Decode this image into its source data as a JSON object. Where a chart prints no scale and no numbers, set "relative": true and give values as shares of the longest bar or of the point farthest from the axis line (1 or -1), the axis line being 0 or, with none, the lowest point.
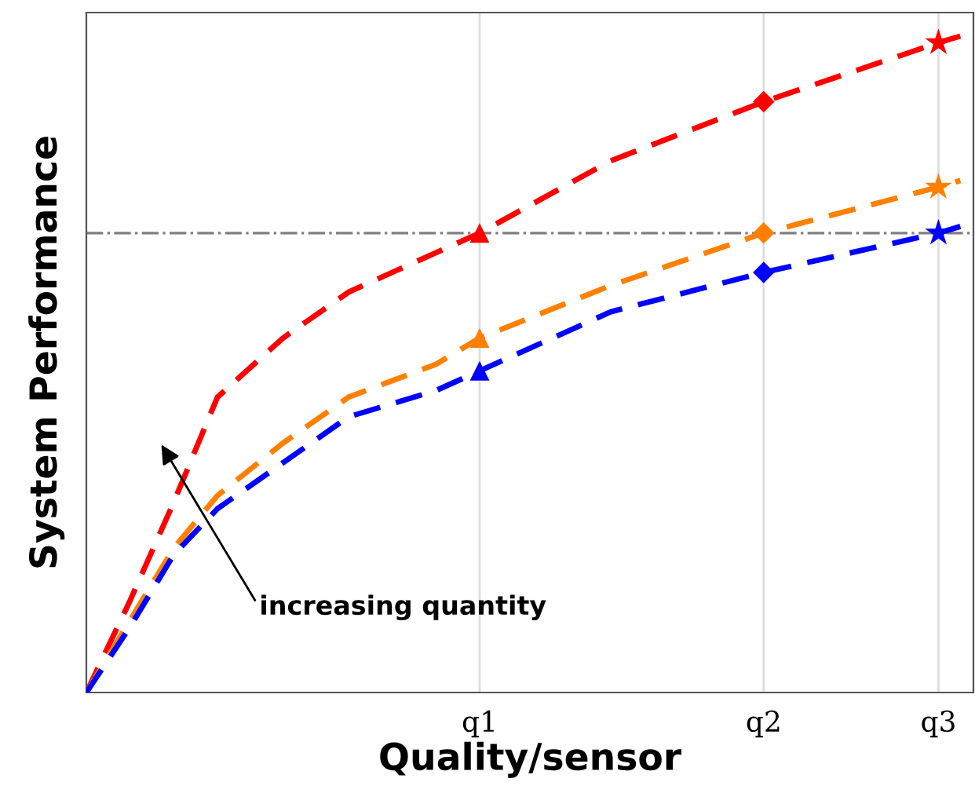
{
  "chart_data": {
    "type": "line",
    "xlabel": "Quality/sensor",
    "ylabel": "System Performance",
    "relative": true,
    "categories": [
      null,
      null,
      null,
      null,
      null,
      null,
      null,
      null,
      null,
      null,
      null,
      null,
      null,
      null,
      null,
      null,
      null,
      null,
      "q1",
      null,
      null,
      null,
      null,
      null,
      null,
      null,
      null,
      null,
      null,
      null,
      null,
      "q2",
      null,
      null,
      null,
      null,
      null,
      null,
      null,
      "q3",
      null
    ],
    "grid": "x",
    "line_style": "dashed",
    "marker": "none",
    "series": [
      {
        "color": "#ff0000",
        "values": [
          0,
          null,
          0.14,
          null,
          0.29,
          null,
          0.45,
          null,
          null,
          0.54,
          null,
          null,
          0.61,
          null,
          null,
          null,
          0.67,
          null,
          0.7,
          null,
          null,
          null,
          null,
          null,
          0.81,
          null,
          null,
          null,
          null,
          null,
          null,
          0.9,
          null,
          null,
          null,
          null,
          null,
          null,
          null,
          0.99,
          1.0
        ]
      },
      {
        "color": "#ff8000",
        "values": [
          0,
          null,
          0.11,
          null,
          0.22,
          null,
          0.3,
          null,
          null,
          0.38,
          null,
          null,
          0.45,
          null,
          null,
          null,
          0.5,
          null,
          0.54,
          null,
          null,
          null,
          null,
          null,
          0.62,
          null,
          null,
          null,
          null,
          null,
          null,
          0.7,
          null,
          null,
          null,
          null,
          null,
          null,
          null,
          0.77,
          0.78
        ]
      },
      {
        "color": "#0000ff",
        "values": [
          0,
          null,
          0.1,
          null,
          0.21,
          null,
          0.28,
          null,
          null,
          0.35,
          null,
          null,
          0.42,
          null,
          null,
          null,
          0.46,
          null,
          0.49,
          null,
          null,
          null,
          null,
          null,
          0.58,
          null,
          null,
          null,
          null,
          null,
          null,
          0.64,
          null,
          null,
          null,
          null,
          null,
          null,
          null,
          0.7,
          0.71
        ]
      },
      {
        "type": "scatter",
        "marker": "triangle",
        "color": "#ff0000",
        "values": [
          null,
          null,
          null,
          null,
          null,
          null,
          null,
          null,
          null,
          null,
          null,
          null,
          null,
          null,
          null,
          null,
          null,
          null,
          0.7,
          null,
          null,
          null,
          null,
          null,
          null,
          null,
          null,
          null,
          null,
          null,
          null,
          null,
          null,
          null,
          null,
          null,
          null,
          null,
          null,
          null,
          null
        ]
      },
      {
        "type": "scatter",
        "marker": "triangle",
        "color": "#ff8000",
        "values": [
          null,
          null,
          null,
          null,
          null,
          null,
          null,
          null,
          null,
          null,
          null,
          null,
          null,
          null,
          null,
          null,
          null,
          null,
          0.54,
          null,
          null,
          null,
          null,
          null,
          null,
          null,
          null,
          null,
          null,
          null,
          null,
          null,
          null,
          null,
          null,
          null,
          null,
          null,
          null,
          null,
          null
        ]
      },
      {
        "type": "scatter",
        "marker": "triangle",
        "color": "#0000ff",
        "values": [
          null,
          null,
          null,
          null,
          null,
          null,
          null,
          null,
          null,
          null,
          null,
          null,
          null,
          null,
          null,
          null,
          null,
          null,
          0.49,
          null,
          null,
          null,
          null,
          null,
          null,
          null,
          null,
          null,
          null,
          null,
          null,
          null,
          null,
          null,
          null,
          null,
          null,
          null,
          null,
          null,
          null
        ]
      },
      {
        "type": "scatter",
        "marker": "diamond",
        "color": "#ff0000",
        "values": [
          null,
          null,
          null,
          null,
          null,
          null,
          null,
          null,
          null,
          null,
          null,
          null,
          null,
          null,
          null,
          null,
          null,
          null,
          null,
          null,
          null,
          null,
          null,
          null,
          null,
          null,
          null,
          null,
          null,
          null,
          null,
          0.9,
          null,
          null,
          null,
          null,
          null,
          null,
          null,
          null,
          null
        ]
      },
      {
        "type": "scatter",
        "marker": "diamond",
        "color": "#ff8000",
        "values": [
          null,
          null,
          null,
          null,
          null,
          null,
          null,
          null,
          null,
          null,
          null,
          null,
          null,
          null,
          null,
          null,
          null,
          null,
          null,
          null,
          null,
          null,
          null,
          null,
          null,
          null,
          null,
          null,
          null,
          null,
          null,
          0.7,
          null,
          null,
          null,
          null,
          null,
          null,
          null,
          null,
          null
        ]
      },
      {
        "type": "scatter",
        "marker": "diamond",
        "color": "#0000ff",
        "values": [
          null,
          null,
          null,
          null,
          null,
          null,
          null,
          null,
          null,
          null,
          null,
          null,
          null,
          null,
          null,
          null,
          null,
          null,
          null,
          null,
          null,
          null,
          null,
          null,
          null,
          null,
          null,
          null,
          null,
          null,
          null,
          0.64,
          null,
          null,
          null,
          null,
          null,
          null,
          null,
          null,
          null
        ]
      },
      {
        "type": "scatter",
        "marker": "star",
        "color": "#ff0000",
        "values": [
          null,
          null,
          null,
          null,
          null,
          null,
          null,
          null,
          null,
          null,
          null,
          null,
          null,
          null,
          null,
          null,
          null,
          null,
          null,
          null,
          null,
          null,
          null,
          null,
          null,
          null,
          null,
          null,
          null,
          null,
          null,
          null,
          null,
          null,
          null,
          null,
          null,
          null,
          null,
          0.99,
          null
        ]
      },
      {
        "type": "scatter",
        "marker": "star",
        "color": "#ff8000",
        "values": [
          null,
          null,
          null,
          null,
          null,
          null,
          null,
          null,
          null,
          null,
          null,
          null,
          null,
          null,
          null,
          null,
          null,
          null,
          null,
          null,
          null,
          null,
          null,
          null,
          null,
          null,
          null,
          null,
          null,
          null,
          null,
          null,
          null,
          null,
          null,
          null,
          null,
          null,
          null,
          0.77,
          null
        ]
      },
      {
        "type": "scatter",
        "marker": "star",
        "color": "#0000ff",
        "values": [
          null,
          null,
          null,
          null,
          null,
          null,
          null,
          null,
          null,
          null,
          null,
          null,
          null,
          null,
          null,
          null,
          null,
          null,
          null,
          null,
          null,
          null,
          null,
          null,
          null,
          null,
          null,
          null,
          null,
          null,
          null,
          null,
          null,
          null,
          null,
          null,
          null,
          null,
          null,
          0.7,
          null
        ]
      }
    ],
    "ref_lines": [
      {
        "axis": "y",
        "value": 0.7,
        "color": "#808080",
        "line_style": "dashdot"
      }
    ],
    "annotations": [
      "increasing quantity"
    ]
  }
}
